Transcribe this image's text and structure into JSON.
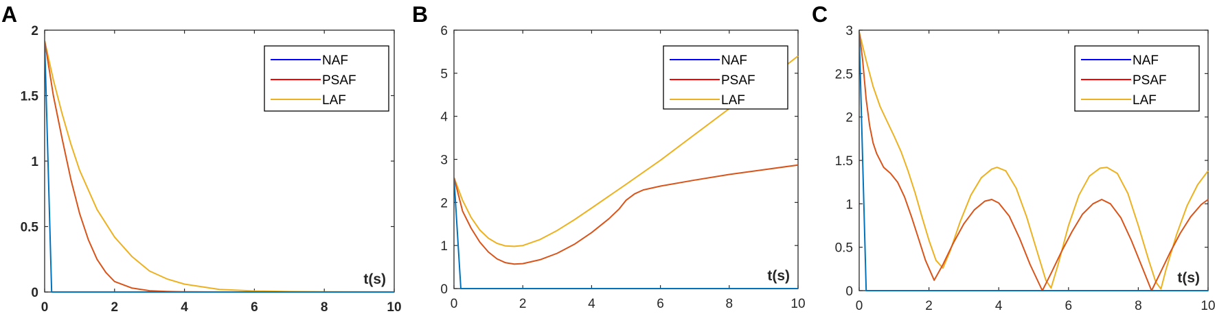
{
  "figure": {
    "panels": [
      {
        "letter": "A",
        "xlabel": "t(s)"
      },
      {
        "letter": "B",
        "xlabel": "t(s)"
      },
      {
        "letter": "C",
        "xlabel": "t(s)"
      }
    ],
    "legend": [
      {
        "label": "NAF",
        "color": "#0000FF"
      },
      {
        "label": "PSAF",
        "color": "#FF0000"
      },
      {
        "label": "LAF",
        "color": "#EDB120"
      }
    ],
    "line_colors": {
      "NAF": "#0072BD",
      "PSAF": "#D95319",
      "LAF": "#EDB120"
    }
  },
  "chart_data": [
    {
      "type": "line",
      "title": "A",
      "xlabel": "t(s)",
      "ylabel": "",
      "xlim": [
        0,
        10
      ],
      "ylim": [
        0,
        2
      ],
      "xticks": [
        "0",
        "2",
        "4",
        "6",
        "8",
        "10"
      ],
      "yticks": [
        "0",
        "0.5",
        "1",
        "1.5",
        "2"
      ],
      "tick_font_bold": true,
      "legend_position": "upper right",
      "grid": false,
      "series": [
        {
          "name": "NAF",
          "x": [
            0,
            0.2,
            10
          ],
          "y": [
            1.92,
            0,
            0
          ]
        },
        {
          "name": "PSAF",
          "x": [
            0,
            0.25,
            0.5,
            0.75,
            1,
            1.25,
            1.5,
            1.75,
            2,
            2.5,
            3,
            3.5,
            4,
            5,
            6,
            10
          ],
          "y": [
            1.92,
            1.5,
            1.17,
            0.86,
            0.6,
            0.4,
            0.25,
            0.15,
            0.08,
            0.03,
            0.01,
            0.004,
            0.001,
            0,
            0,
            0
          ]
        },
        {
          "name": "LAF",
          "x": [
            0,
            0.25,
            0.5,
            0.75,
            1,
            1.5,
            2,
            2.5,
            3,
            3.5,
            4,
            5,
            6,
            7,
            8,
            10
          ],
          "y": [
            1.92,
            1.62,
            1.36,
            1.13,
            0.93,
            0.63,
            0.42,
            0.27,
            0.16,
            0.1,
            0.06,
            0.02,
            0.008,
            0.003,
            0.001,
            0
          ]
        }
      ]
    },
    {
      "type": "line",
      "title": "B",
      "xlabel": "t(s)",
      "ylabel": "",
      "xlim": [
        0,
        10
      ],
      "ylim": [
        0,
        6
      ],
      "xticks": [
        "0",
        "2",
        "4",
        "6",
        "8",
        "10"
      ],
      "yticks": [
        "0",
        "1",
        "2",
        "3",
        "4",
        "5",
        "6"
      ],
      "tick_font_bold": false,
      "legend_position": "upper right",
      "grid": false,
      "series": [
        {
          "name": "NAF",
          "x": [
            0,
            0.2,
            10
          ],
          "y": [
            2.58,
            0,
            0
          ]
        },
        {
          "name": "PSAF",
          "x": [
            0,
            0.25,
            0.5,
            0.75,
            1,
            1.25,
            1.5,
            1.75,
            2,
            2.5,
            3,
            3.5,
            4,
            4.5,
            4.8,
            5,
            5.25,
            5.5,
            6,
            7,
            8,
            9,
            10
          ],
          "y": [
            2.58,
            1.8,
            1.4,
            1.08,
            0.85,
            0.69,
            0.6,
            0.57,
            0.58,
            0.67,
            0.82,
            1.03,
            1.3,
            1.62,
            1.85,
            2.05,
            2.2,
            2.29,
            2.38,
            2.52,
            2.65,
            2.76,
            2.87
          ]
        },
        {
          "name": "LAF",
          "x": [
            0,
            0.25,
            0.5,
            0.75,
            1,
            1.25,
            1.5,
            1.75,
            2,
            2.5,
            3,
            3.5,
            4,
            5,
            6,
            7,
            8,
            9,
            10
          ],
          "y": [
            2.58,
            2.05,
            1.65,
            1.36,
            1.17,
            1.05,
            0.99,
            0.98,
            1.0,
            1.14,
            1.35,
            1.6,
            1.87,
            2.42,
            2.98,
            3.58,
            4.18,
            4.78,
            5.4
          ]
        }
      ]
    },
    {
      "type": "line",
      "title": "C",
      "xlabel": "t(s)",
      "ylabel": "",
      "xlim": [
        0,
        10
      ],
      "ylim": [
        0,
        3
      ],
      "xticks": [
        "0",
        "2",
        "4",
        "6",
        "8",
        "10"
      ],
      "yticks": [
        "0",
        "0.5",
        "1",
        "1.5",
        "2",
        "2.5",
        "3"
      ],
      "tick_font_bold": false,
      "legend_position": "upper right",
      "grid": false,
      "series": [
        {
          "name": "NAF",
          "x": [
            0,
            0.2,
            10
          ],
          "y": [
            2.98,
            0,
            0
          ]
        },
        {
          "name": "PSAF",
          "x": [
            0,
            0.1,
            0.2,
            0.3,
            0.4,
            0.5,
            0.7,
            0.9,
            1.1,
            1.3,
            1.5,
            1.7,
            1.9,
            2.15,
            2.4,
            2.7,
            3.0,
            3.3,
            3.6,
            3.8,
            4.0,
            4.3,
            4.6,
            4.9,
            5.25,
            5.5,
            5.8,
            6.1,
            6.4,
            6.7,
            6.95,
            7.2,
            7.5,
            7.8,
            8.1,
            8.38,
            8.6,
            8.9,
            9.2,
            9.5,
            9.8,
            10
          ],
          "y": [
            2.98,
            2.65,
            2.2,
            1.9,
            1.7,
            1.58,
            1.42,
            1.35,
            1.25,
            1.08,
            0.85,
            0.6,
            0.35,
            0.12,
            0.3,
            0.55,
            0.77,
            0.93,
            1.03,
            1.05,
            1.01,
            0.86,
            0.6,
            0.3,
            0.0,
            0.2,
            0.45,
            0.68,
            0.88,
            1.0,
            1.05,
            1.0,
            0.84,
            0.58,
            0.28,
            0.0,
            0.18,
            0.43,
            0.66,
            0.85,
            0.99,
            1.05
          ]
        },
        {
          "name": "LAF",
          "x": [
            0,
            0.2,
            0.4,
            0.6,
            0.8,
            1.0,
            1.2,
            1.4,
            1.6,
            1.8,
            2.0,
            2.2,
            2.4,
            2.6,
            2.9,
            3.2,
            3.5,
            3.8,
            3.95,
            4.2,
            4.5,
            4.8,
            5.1,
            5.35,
            5.5,
            5.7,
            6.0,
            6.3,
            6.6,
            6.9,
            7.1,
            7.4,
            7.7,
            8.0,
            8.3,
            8.5,
            8.65,
            8.8,
            9.1,
            9.4,
            9.7,
            10
          ],
          "y": [
            2.98,
            2.65,
            2.35,
            2.12,
            1.95,
            1.78,
            1.6,
            1.38,
            1.13,
            0.85,
            0.58,
            0.35,
            0.26,
            0.45,
            0.8,
            1.1,
            1.3,
            1.4,
            1.42,
            1.38,
            1.18,
            0.85,
            0.45,
            0.12,
            0.03,
            0.3,
            0.75,
            1.1,
            1.32,
            1.41,
            1.42,
            1.35,
            1.12,
            0.75,
            0.35,
            0.1,
            0.02,
            0.25,
            0.65,
            0.98,
            1.22,
            1.38
          ]
        }
      ]
    }
  ]
}
